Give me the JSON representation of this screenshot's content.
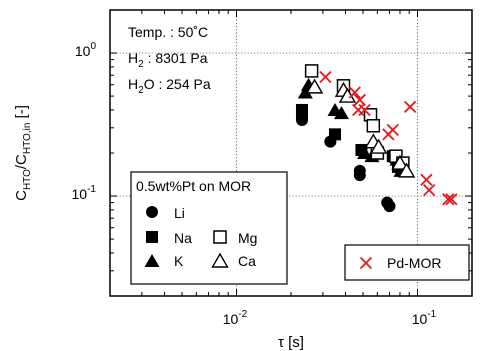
{
  "chart_data": {
    "type": "scatter",
    "xscale": "log",
    "yscale": "log",
    "xlim": [
      0.002,
      0.2
    ],
    "ylim": [
      0.02,
      2
    ],
    "xlabel": "τ [s]",
    "ylabel": {
      "base": "C",
      "sub1": "HTO",
      "mid": "/C",
      "sub2": "HTO,in",
      "tail": " [-]"
    },
    "xticks": [
      {
        "value": 0.01,
        "base": "10",
        "exp": "-2"
      },
      {
        "value": 0.1,
        "base": "10",
        "exp": "-1"
      }
    ],
    "yticks": [
      {
        "value": 0.1,
        "base": "10",
        "exp": "-1"
      },
      {
        "value": 1,
        "base": "10",
        "exp": "0"
      }
    ],
    "grid": true,
    "annotations": [
      {
        "text": "Temp. : 50˚C"
      },
      {
        "base": "H",
        "sub": "2",
        "rest": " : 8301 Pa"
      },
      {
        "base": "H",
        "sub": "2",
        "rest": "O : 254 Pa"
      }
    ],
    "legend_title": "0.5wt%Pt on MOR",
    "legend_placement": "lower-left",
    "series": [
      {
        "name": "Li",
        "marker": "circle",
        "points": [
          [
            0.023,
            0.34
          ],
          [
            0.023,
            0.36
          ],
          [
            0.033,
            0.24
          ],
          [
            0.048,
            0.14
          ],
          [
            0.048,
            0.15
          ],
          [
            0.068,
            0.09
          ],
          [
            0.07,
            0.085
          ]
        ]
      },
      {
        "name": "Na",
        "marker": "square",
        "points": [
          [
            0.023,
            0.38
          ],
          [
            0.023,
            0.4
          ],
          [
            0.035,
            0.27
          ],
          [
            0.049,
            0.21
          ],
          [
            0.073,
            0.19
          ],
          [
            0.078,
            0.16
          ]
        ]
      },
      {
        "name": "K",
        "marker": "triangle",
        "points": [
          [
            0.024,
            0.53
          ],
          [
            0.025,
            0.6
          ],
          [
            0.035,
            0.4
          ],
          [
            0.038,
            0.38
          ],
          [
            0.051,
            0.2
          ],
          [
            0.056,
            0.19
          ],
          [
            0.077,
            0.18
          ],
          [
            0.081,
            0.15
          ]
        ]
      },
      {
        "name": "Mg",
        "marker": "open-square",
        "points": [
          [
            0.026,
            0.75
          ],
          [
            0.039,
            0.59
          ],
          [
            0.055,
            0.37
          ],
          [
            0.057,
            0.31
          ],
          [
            0.06,
            0.2
          ],
          [
            0.076,
            0.19
          ],
          [
            0.083,
            0.17
          ]
        ]
      },
      {
        "name": "Ca",
        "marker": "open-triangle",
        "points": [
          [
            0.027,
            0.58
          ],
          [
            0.039,
            0.55
          ],
          [
            0.041,
            0.5
          ],
          [
            0.057,
            0.24
          ],
          [
            0.061,
            0.22
          ],
          [
            0.08,
            0.17
          ],
          [
            0.087,
            0.15
          ]
        ]
      },
      {
        "name": "Pd-MOR",
        "marker": "x",
        "color": "#e8161b",
        "points": [
          [
            0.031,
            0.68
          ],
          [
            0.045,
            0.53
          ],
          [
            0.048,
            0.47
          ],
          [
            0.047,
            0.4
          ],
          [
            0.051,
            0.4
          ],
          [
            0.069,
            0.27
          ],
          [
            0.073,
            0.29
          ],
          [
            0.091,
            0.42
          ],
          [
            0.112,
            0.13
          ],
          [
            0.116,
            0.11
          ],
          [
            0.148,
            0.095
          ],
          [
            0.154,
            0.095
          ]
        ]
      }
    ]
  }
}
